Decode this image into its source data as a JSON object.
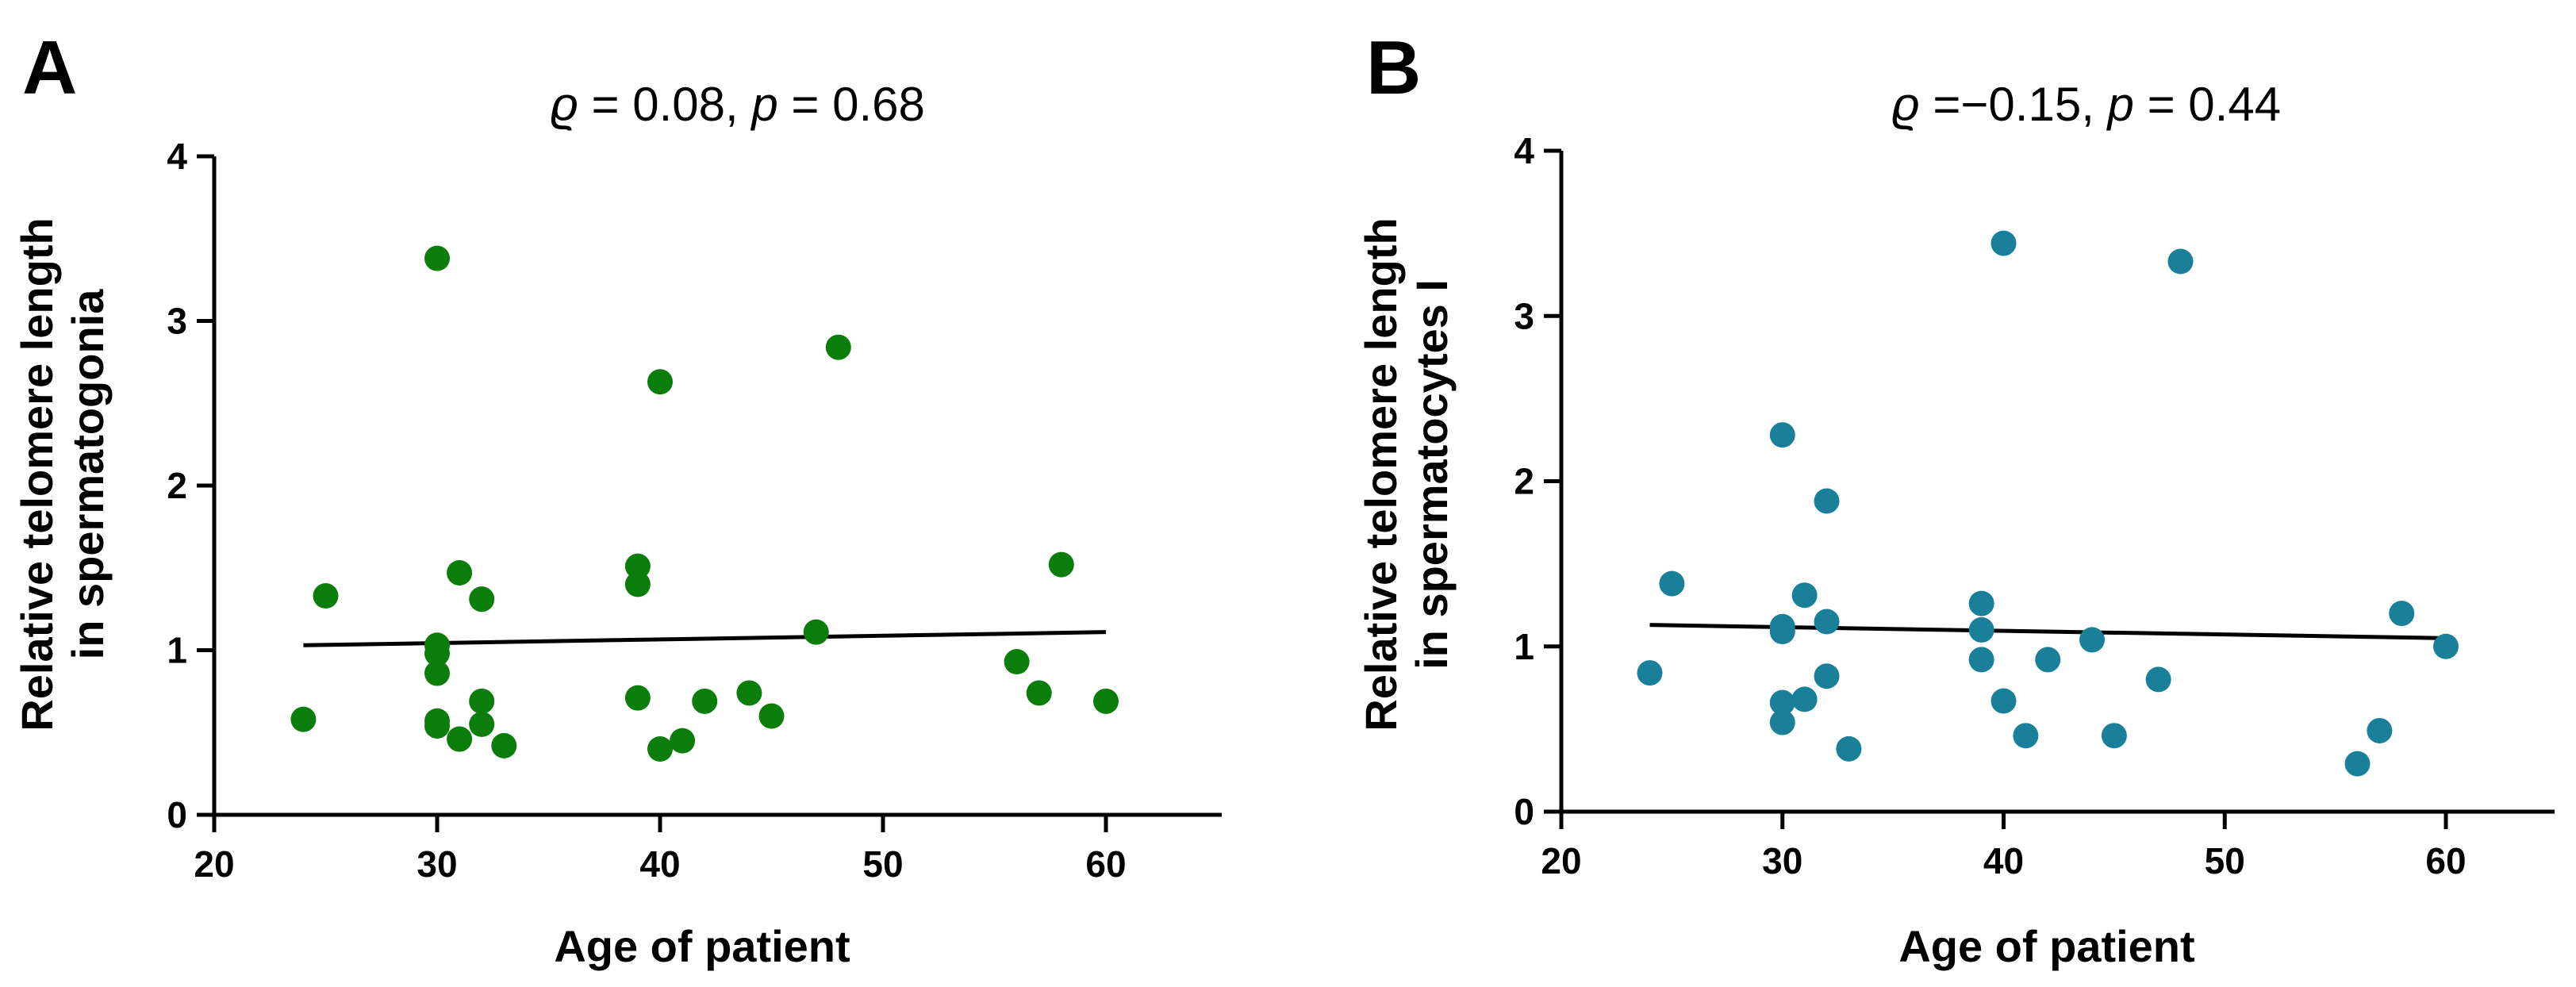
{
  "chart_data": [
    {
      "type": "scatter",
      "panel_label": "A",
      "stats": {
        "rho_symbol": "ϱ",
        "rho_text": " = 0.08, ",
        "p_symbol": "p",
        "p_text": " = 0.68"
      },
      "xlabel": "Age of patient",
      "ylabel": [
        "Relative telomere length",
        "in spermatogonia"
      ],
      "xlim": [
        20,
        65
      ],
      "ylim": [
        0,
        4
      ],
      "xticks": [
        20,
        30,
        40,
        50,
        60
      ],
      "yticks": [
        0,
        1,
        2,
        3,
        4
      ],
      "color": "#0b7d0b",
      "points": [
        [
          24,
          0.58
        ],
        [
          25,
          1.33
        ],
        [
          30,
          3.38
        ],
        [
          30,
          1.03
        ],
        [
          30,
          0.98
        ],
        [
          30,
          0.86
        ],
        [
          30,
          0.57
        ],
        [
          30,
          0.54
        ],
        [
          31,
          1.47
        ],
        [
          31,
          0.46
        ],
        [
          32,
          1.31
        ],
        [
          32,
          0.69
        ],
        [
          32,
          0.55
        ],
        [
          33,
          0.42
        ],
        [
          39,
          1.51
        ],
        [
          39,
          1.4
        ],
        [
          39,
          0.71
        ],
        [
          40,
          2.63
        ],
        [
          40,
          0.4
        ],
        [
          41,
          0.45
        ],
        [
          42,
          0.69
        ],
        [
          44,
          0.74
        ],
        [
          45,
          0.6
        ],
        [
          47,
          1.11
        ],
        [
          48,
          2.84
        ],
        [
          56,
          0.93
        ],
        [
          57,
          0.74
        ],
        [
          58,
          1.52
        ],
        [
          60,
          0.69
        ]
      ],
      "fit": {
        "x": [
          24,
          60
        ],
        "y": [
          1.03,
          1.11
        ]
      }
    },
    {
      "type": "scatter",
      "panel_label": "B",
      "stats": {
        "rho_symbol": "ϱ",
        "rho_text": " =−0.15, ",
        "p_symbol": "p",
        "p_text": " = 0.44"
      },
      "xlabel": "Age of patient",
      "ylabel": [
        "Relative telomere length",
        "in spermatocytes I"
      ],
      "xlim": [
        20,
        65
      ],
      "ylim": [
        0,
        4
      ],
      "xticks": [
        20,
        30,
        40,
        50,
        60
      ],
      "yticks": [
        0,
        1,
        2,
        3,
        4
      ],
      "color": "#1a8099",
      "points": [
        [
          24,
          0.84
        ],
        [
          25,
          1.38
        ],
        [
          30,
          2.28
        ],
        [
          30,
          1.12
        ],
        [
          30,
          1.09
        ],
        [
          30,
          0.66
        ],
        [
          30,
          0.54
        ],
        [
          31,
          1.31
        ],
        [
          31,
          0.68
        ],
        [
          32,
          1.88
        ],
        [
          32,
          1.15
        ],
        [
          32,
          0.82
        ],
        [
          33,
          0.38
        ],
        [
          39,
          1.26
        ],
        [
          39,
          1.1
        ],
        [
          39,
          0.92
        ],
        [
          40,
          3.44
        ],
        [
          40,
          0.67
        ],
        [
          41,
          0.46
        ],
        [
          42,
          0.92
        ],
        [
          44,
          1.04
        ],
        [
          45,
          0.46
        ],
        [
          47,
          0.8
        ],
        [
          48,
          3.33
        ],
        [
          56,
          0.29
        ],
        [
          57,
          0.49
        ],
        [
          58,
          1.2
        ],
        [
          60,
          1.0
        ]
      ],
      "fit": {
        "x": [
          24,
          60
        ],
        "y": [
          1.13,
          1.05
        ]
      }
    }
  ]
}
